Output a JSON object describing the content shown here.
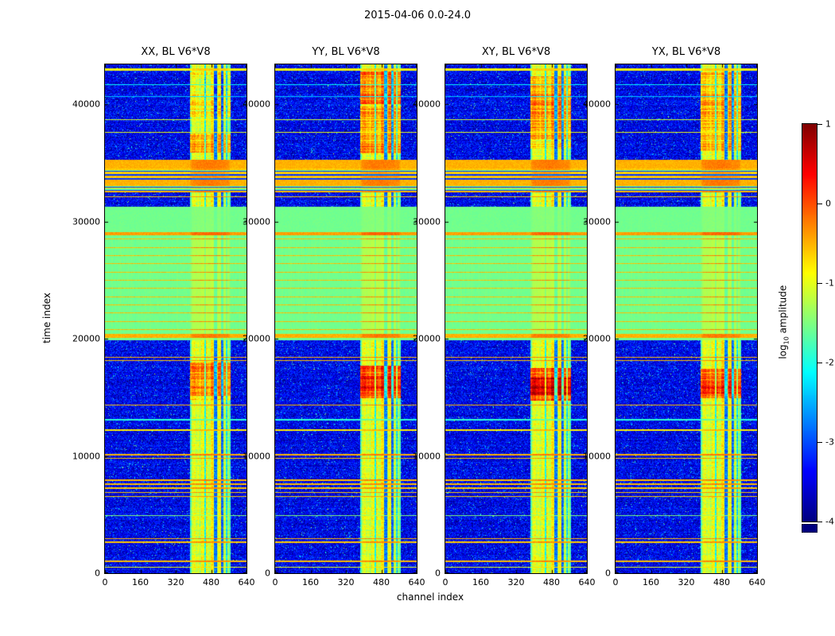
{
  "figure": {
    "title": "2015-04-06 0.0-24.0",
    "background": "#ffffff"
  },
  "chart_data": {
    "type": "heatmap",
    "title": "2015-04-06 0.0-24.0",
    "xlabel": "channel index",
    "ylabel": "time index",
    "x_range": [
      0,
      640
    ],
    "y_range": [
      0,
      43400
    ],
    "x_ticks": [
      0,
      160,
      320,
      480,
      640
    ],
    "y_ticks": [
      0,
      10000,
      20000,
      30000,
      40000
    ],
    "colormap": "jet",
    "value_range": [
      -4,
      1
    ],
    "grid": false,
    "legend": false,
    "colorbar": {
      "label_prefix": "log",
      "label_sub": "10",
      "label_suffix": " amplitude",
      "ticks": [
        1,
        0,
        -1,
        -2,
        -3,
        -4
      ]
    },
    "panels": [
      {
        "title": "XX, BL V6*V8",
        "seed": 11,
        "hot_patches": [
          [
            38900,
            42700,
            -0.95
          ],
          [
            35900,
            37500,
            -0.55
          ],
          [
            15100,
            18000,
            -0.35
          ],
          [
            14800,
            15100,
            -0.8
          ]
        ]
      },
      {
        "title": "YY, BL V6*V8",
        "seed": 23,
        "hot_patches": [
          [
            40000,
            42800,
            -0.25
          ],
          [
            36500,
            39900,
            -0.5
          ],
          [
            35800,
            36500,
            -0.35
          ],
          [
            14900,
            17700,
            -0.1
          ],
          [
            15500,
            16800,
            0.25
          ]
        ]
      },
      {
        "title": "XY, BL V6*V8",
        "seed": 37,
        "hot_patches": [
          [
            37000,
            42400,
            -0.45
          ],
          [
            36200,
            37000,
            -0.9
          ],
          [
            14700,
            17500,
            -0.15
          ],
          [
            15200,
            16700,
            0.5
          ]
        ]
      },
      {
        "title": "YX, BL V6*V8",
        "seed": 51,
        "hot_patches": [
          [
            36000,
            42700,
            -0.6
          ],
          [
            14900,
            17400,
            -0.2
          ],
          [
            15300,
            16500,
            0.15
          ]
        ]
      }
    ],
    "band": {
      "range": [
        383,
        568
      ],
      "core": 465,
      "notches": [
        [
          449,
          455,
          0.5
        ],
        [
          494,
          506,
          1.0
        ],
        [
          524,
          534,
          1.0
        ],
        [
          546,
          552,
          0.6
        ]
      ]
    },
    "green_regions": [
      {
        "t": [
          19850,
          28850
        ],
        "band_vis": 0.25
      },
      {
        "t": [
          28850,
          31250
        ],
        "band_vis": 0.08
      }
    ],
    "dense_rfi": {
      "solid": [
        [
          34550,
          35250,
          -0.5
        ],
        [
          33000,
          33600,
          -0.5
        ]
      ],
      "striped": [
        [
          33600,
          34550
        ],
        [
          32450,
          33000
        ]
      ]
    },
    "stripes": [
      [
        42850,
        43080,
        -0.9
      ],
      [
        41620,
        41720,
        -2.1
      ],
      [
        40620,
        40700,
        -2.4
      ],
      [
        38650,
        38740,
        -1.1
      ],
      [
        37550,
        37640,
        -1.0
      ],
      [
        32050,
        32140,
        -0.6
      ],
      [
        28850,
        29060,
        -0.4
      ],
      [
        28450,
        28530,
        -0.55
      ],
      [
        27750,
        27830,
        -0.55
      ],
      [
        27050,
        27130,
        -0.55
      ],
      [
        26350,
        26430,
        -0.55
      ],
      [
        25650,
        25730,
        -0.55
      ],
      [
        24950,
        25030,
        -0.55
      ],
      [
        24250,
        24330,
        -0.55
      ],
      [
        23550,
        23630,
        -0.55
      ],
      [
        22850,
        22930,
        -0.55
      ],
      [
        22150,
        22230,
        -0.55
      ],
      [
        21450,
        21530,
        -0.55
      ],
      [
        20750,
        20830,
        -0.55
      ],
      [
        20100,
        20380,
        -0.5
      ],
      [
        18380,
        18470,
        -0.5
      ],
      [
        18080,
        18170,
        -0.6
      ],
      [
        14280,
        14380,
        -0.55
      ],
      [
        13050,
        13130,
        -1.9
      ],
      [
        12150,
        12250,
        -0.8
      ],
      [
        10050,
        10160,
        -0.5
      ],
      [
        9750,
        9850,
        -0.6
      ],
      [
        7900,
        7990,
        -0.55
      ],
      [
        7560,
        7650,
        -0.55
      ],
      [
        7210,
        7300,
        -0.6
      ],
      [
        6860,
        6950,
        -0.6
      ],
      [
        6510,
        6600,
        -0.65
      ],
      [
        4850,
        4930,
        -1.5
      ],
      [
        2920,
        3010,
        -0.55
      ],
      [
        2600,
        2690,
        -0.6
      ],
      [
        980,
        1070,
        -0.55
      ],
      [
        450,
        540,
        -1.0
      ]
    ]
  }
}
